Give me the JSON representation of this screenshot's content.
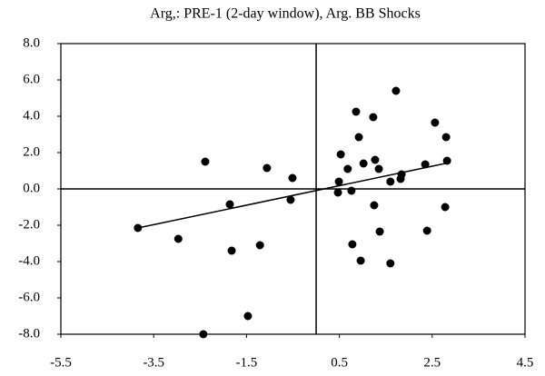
{
  "chart_data": {
    "type": "scatter",
    "title": "Arg,: PRE-1 (2-day window), Arg. BB Shocks",
    "x": [
      -2.39,
      -1.06,
      -1.86,
      -0.55,
      -0.51,
      -3.84,
      -2.97,
      -1.82,
      -1.21,
      -1.47,
      -2.43,
      0.53,
      0.68,
      0.86,
      0.92,
      1.02,
      1.23,
      1.27,
      1.35,
      1.72,
      1.6,
      1.82,
      1.84,
      2.35,
      2.56,
      2.8,
      2.82,
      2.78,
      1.25,
      1.37,
      2.39,
      0.78,
      0.96,
      1.6,
      0.49,
      0.47,
      0.76
    ],
    "values": [
      1.5,
      1.15,
      -0.85,
      -0.6,
      0.6,
      -2.15,
      -2.75,
      -3.4,
      -3.1,
      -7,
      -8,
      1.9,
      1.1,
      4.25,
      2.85,
      1.4,
      3.95,
      1.6,
      1.1,
      5.4,
      0.4,
      0.55,
      0.8,
      1.35,
      3.65,
      2.85,
      1.55,
      -1.0,
      -0.9,
      -2.35,
      -2.3,
      -3.05,
      -3.95,
      -4.1,
      0.4,
      -0.2,
      -0.1
    ],
    "color": "#000000",
    "trend_line": {
      "x": [
        -3.84,
        2.78
      ],
      "y": [
        -2.15,
        1.4
      ]
    },
    "xlim": [
      -5.5,
      4.5
    ],
    "xticks": [
      -5.5,
      -3.5,
      -1.5,
      0.5,
      2.5,
      4.5
    ],
    "ylim": [
      -8,
      8
    ],
    "yticks": [
      {
        "value": 8,
        "label": "8.0"
      },
      {
        "value": 6,
        "label": "6.0"
      },
      {
        "value": 4,
        "label": "4.0"
      },
      {
        "value": 2,
        "label": "2.0"
      },
      {
        "value": 0,
        "label": "0.0"
      },
      {
        "value": -2,
        "label": "-2.0"
      },
      {
        "value": -4,
        "label": "-4.0"
      },
      {
        "value": -6,
        "label": "-6.0"
      },
      {
        "value": -8,
        "label": "-8.0"
      }
    ]
  }
}
